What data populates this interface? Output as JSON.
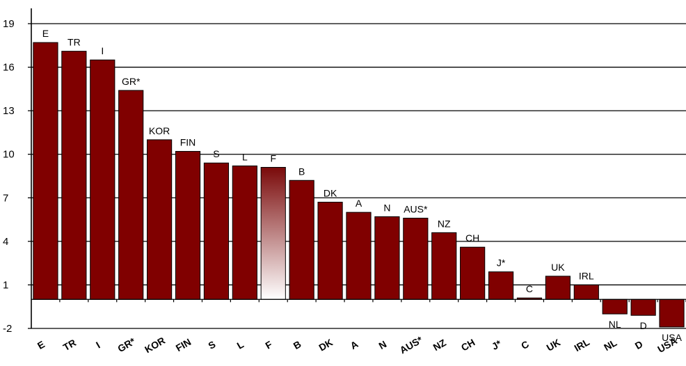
{
  "colors": {
    "bar": "#800000",
    "bar_highlight_top": "#7a0a0a",
    "bar_highlight_bottom": "#ffffff",
    "grid": "#000000",
    "axis": "#000000"
  },
  "chart_data": {
    "type": "bar",
    "title": "",
    "xlabel": "",
    "ylabel": "",
    "ylim": [
      -2,
      20
    ],
    "yticks": [
      19,
      16,
      13,
      10,
      7,
      4,
      1,
      -2
    ],
    "grid": true,
    "legend": "none",
    "categories": [
      "E",
      "TR",
      "I",
      "GR*",
      "KOR",
      "FIN",
      "S",
      "L",
      "F",
      "B",
      "DK",
      "A",
      "N",
      "AUS*",
      "NZ",
      "CH",
      "J*",
      "C",
      "UK",
      "IRL",
      "NL",
      "D",
      "USA"
    ],
    "values": [
      17.7,
      17.1,
      16.5,
      14.4,
      11.0,
      10.2,
      9.4,
      9.2,
      9.1,
      8.2,
      6.7,
      6.0,
      5.7,
      5.6,
      4.6,
      3.6,
      1.9,
      0.1,
      1.6,
      1.0,
      -1.0,
      -1.1,
      -1.9
    ],
    "highlight": "F"
  }
}
